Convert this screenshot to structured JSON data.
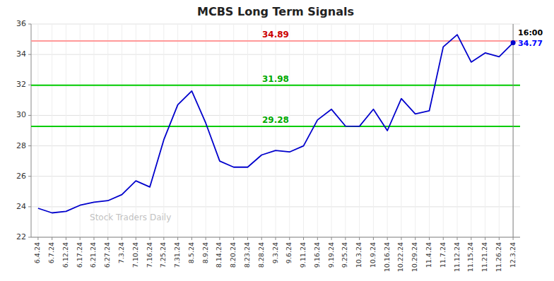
{
  "chart_data": {
    "type": "line",
    "title": "MCBS Long Term Signals",
    "watermark": "Stock Traders Daily",
    "categories": [
      "6.4.24",
      "6.7.24",
      "6.12.24",
      "6.17.24",
      "6.21.24",
      "6.27.24",
      "7.3.24",
      "7.10.24",
      "7.16.24",
      "7.25.24",
      "7.31.24",
      "8.5.24",
      "8.9.24",
      "8.14.24",
      "8.20.24",
      "8.23.24",
      "8.28.24",
      "9.3.24",
      "9.6.24",
      "9.11.24",
      "9.16.24",
      "9.19.24",
      "9.25.24",
      "10.3.24",
      "10.9.24",
      "10.16.24",
      "10.22.24",
      "10.29.24",
      "11.4.24",
      "11.7.24",
      "11.12.24",
      "11.15.24",
      "11.21.24",
      "11.26.24",
      "12.3.24"
    ],
    "values": [
      23.9,
      23.6,
      23.7,
      24.1,
      24.3,
      24.4,
      24.8,
      25.7,
      25.3,
      28.4,
      30.7,
      31.6,
      29.5,
      27.0,
      26.6,
      26.6,
      27.4,
      27.7,
      27.6,
      28.0,
      29.7,
      30.4,
      29.3,
      29.28,
      30.4,
      29.0,
      31.1,
      30.1,
      30.3,
      34.5,
      35.3,
      33.5,
      34.1,
      33.85,
      34.77
    ],
    "color": "#0000CC",
    "ylim": [
      22,
      36
    ],
    "yticks": [
      22,
      24,
      26,
      28,
      30,
      32,
      34,
      36
    ],
    "grid": true,
    "annotations": [
      {
        "type": "hline",
        "y": 34.89,
        "color": "#FF9999",
        "text_color": "#CC0000"
      },
      {
        "type": "hline",
        "y": 31.98,
        "color": "#00CC00",
        "text_color": "#00AA00"
      },
      {
        "type": "hline",
        "y": 29.28,
        "color": "#00CC00",
        "text_color": "#00AA00"
      },
      {
        "type": "vline",
        "x": "12.3.24",
        "color": "gray"
      },
      {
        "type": "point",
        "x": "12.3.24",
        "y": 34.77,
        "text": "16:00",
        "color": "#0000CC",
        "text_color": "black",
        "value_color": "blue"
      }
    ]
  }
}
